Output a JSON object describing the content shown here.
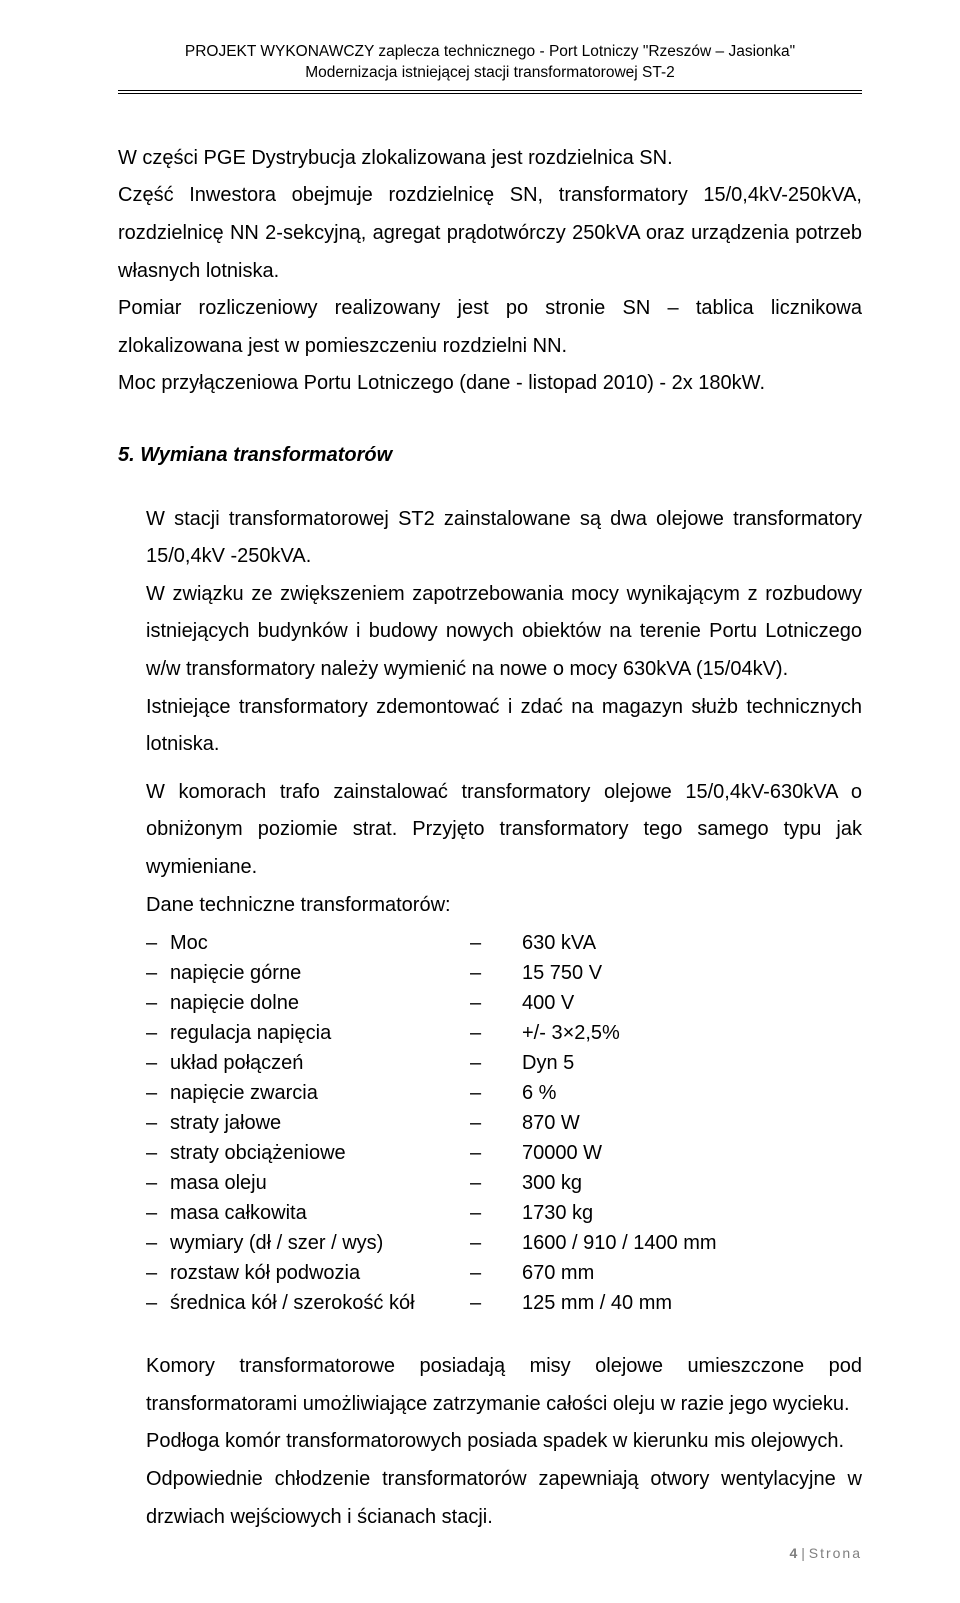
{
  "header": {
    "line1": "PROJEKT WYKONAWCZY  zaplecza technicznego - Port Lotniczy \"Rzeszów – Jasionka\"",
    "line2": "Modernizacja istniejącej stacji transformatorowej ST-2"
  },
  "intro": {
    "p1": "W części PGE Dystrybucja zlokalizowana jest rozdzielnica SN.",
    "p2": "Część Inwestora obejmuje rozdzielnicę SN, transformatory 15/0,4kV-250kVA, rozdzielnicę NN 2-sekcyjną, agregat prądotwórczy 250kVA oraz urządzenia potrzeb własnych lotniska.",
    "p3": "Pomiar rozliczeniowy realizowany jest po stronie SN – tablica licznikowa zlokalizowana jest w pomieszczeniu rozdzielni NN.",
    "p4": "Moc przyłączeniowa Portu Lotniczego (dane - listopad 2010) - 2x 180kW."
  },
  "section5": {
    "title": "5.  Wymiana transformatorów",
    "p1": "W stacji transformatorowej ST2 zainstalowane są dwa olejowe transformatory 15/0,4kV -250kVA.",
    "p2": "W związku ze zwiększeniem zapotrzebowania mocy wynikającym z rozbudowy istniejących budynków i budowy nowych obiektów na terenie Portu Lotniczego w/w transformatory należy wymienić na nowe o mocy 630kVA (15/04kV).",
    "p3": "Istniejące transformatory zdemontować i zdać na magazyn służb technicznych lotniska.",
    "p4": "W komorach trafo zainstalować transformatory olejowe 15/0,4kV-630kVA o obniżonym poziomie strat. Przyjęto transformatory tego samego typu jak wymieniane.",
    "p5": "Dane techniczne transformatorów:",
    "specs": [
      {
        "label": "Moc",
        "value": "630 kVA"
      },
      {
        "label": "napięcie górne",
        "value": "15 750  V"
      },
      {
        "label": "napięcie dolne",
        "value": "400  V"
      },
      {
        "label": "regulacja napięcia",
        "value": "+/-  3×2,5%"
      },
      {
        "label": "układ połączeń",
        "value": "Dyn 5"
      },
      {
        "label": "napięcie zwarcia",
        "value": "6 %"
      },
      {
        "label": "straty jałowe",
        "value": "870  W"
      },
      {
        "label": "straty obciążeniowe",
        "value": "70000 W"
      },
      {
        "label": "masa oleju",
        "value": "300 kg"
      },
      {
        "label": "masa całkowita",
        "value": "1730 kg"
      },
      {
        "label": "wymiary  (dł / szer / wys)",
        "value": "1600 / 910 / 1400  mm"
      },
      {
        "label": "rozstaw kół podwozia",
        "value": "670 mm"
      },
      {
        "label": "średnica kół / szerokość kół",
        "value": "125 mm / 40 mm"
      }
    ],
    "p6": "Komory transformatorowe posiadają misy olejowe umieszczone pod transformatorami umożliwiające zatrzymanie całości oleju w razie jego wycieku.",
    "p7": "Podłoga komór transformatorowych posiada spadek w kierunku mis olejowych.",
    "p8": "Odpowiednie chłodzenie transformatorów zapewniają otwory wentylacyjne w drzwiach wejściowych i ścianach stacji."
  },
  "footer": {
    "page_num": "4",
    "sep": " | ",
    "word": "Strona"
  }
}
